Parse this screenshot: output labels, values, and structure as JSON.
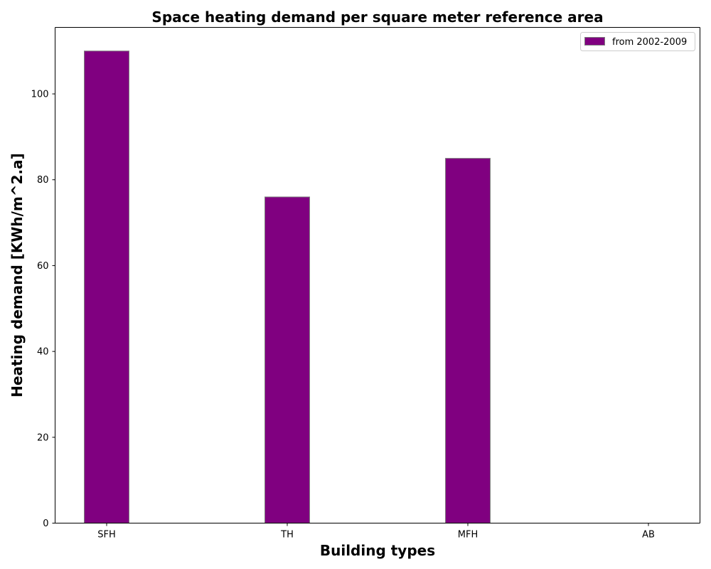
{
  "chart_data": {
    "type": "bar",
    "title": "Space heating demand per square meter reference area",
    "xlabel": "Building types",
    "ylabel": "Heating demand [KWh/m^2.a]",
    "categories": [
      "SFH",
      "TH",
      "MFH",
      "AB"
    ],
    "series": [
      {
        "name": "from 2002-2009",
        "values": [
          110,
          76,
          85,
          0
        ],
        "color": "#800080",
        "edge_color": "#808080"
      }
    ],
    "ylim": [
      0,
      115.5
    ],
    "yticks": [
      0,
      20,
      40,
      60,
      80,
      100
    ],
    "grid": false,
    "legend_position": "top-right"
  }
}
